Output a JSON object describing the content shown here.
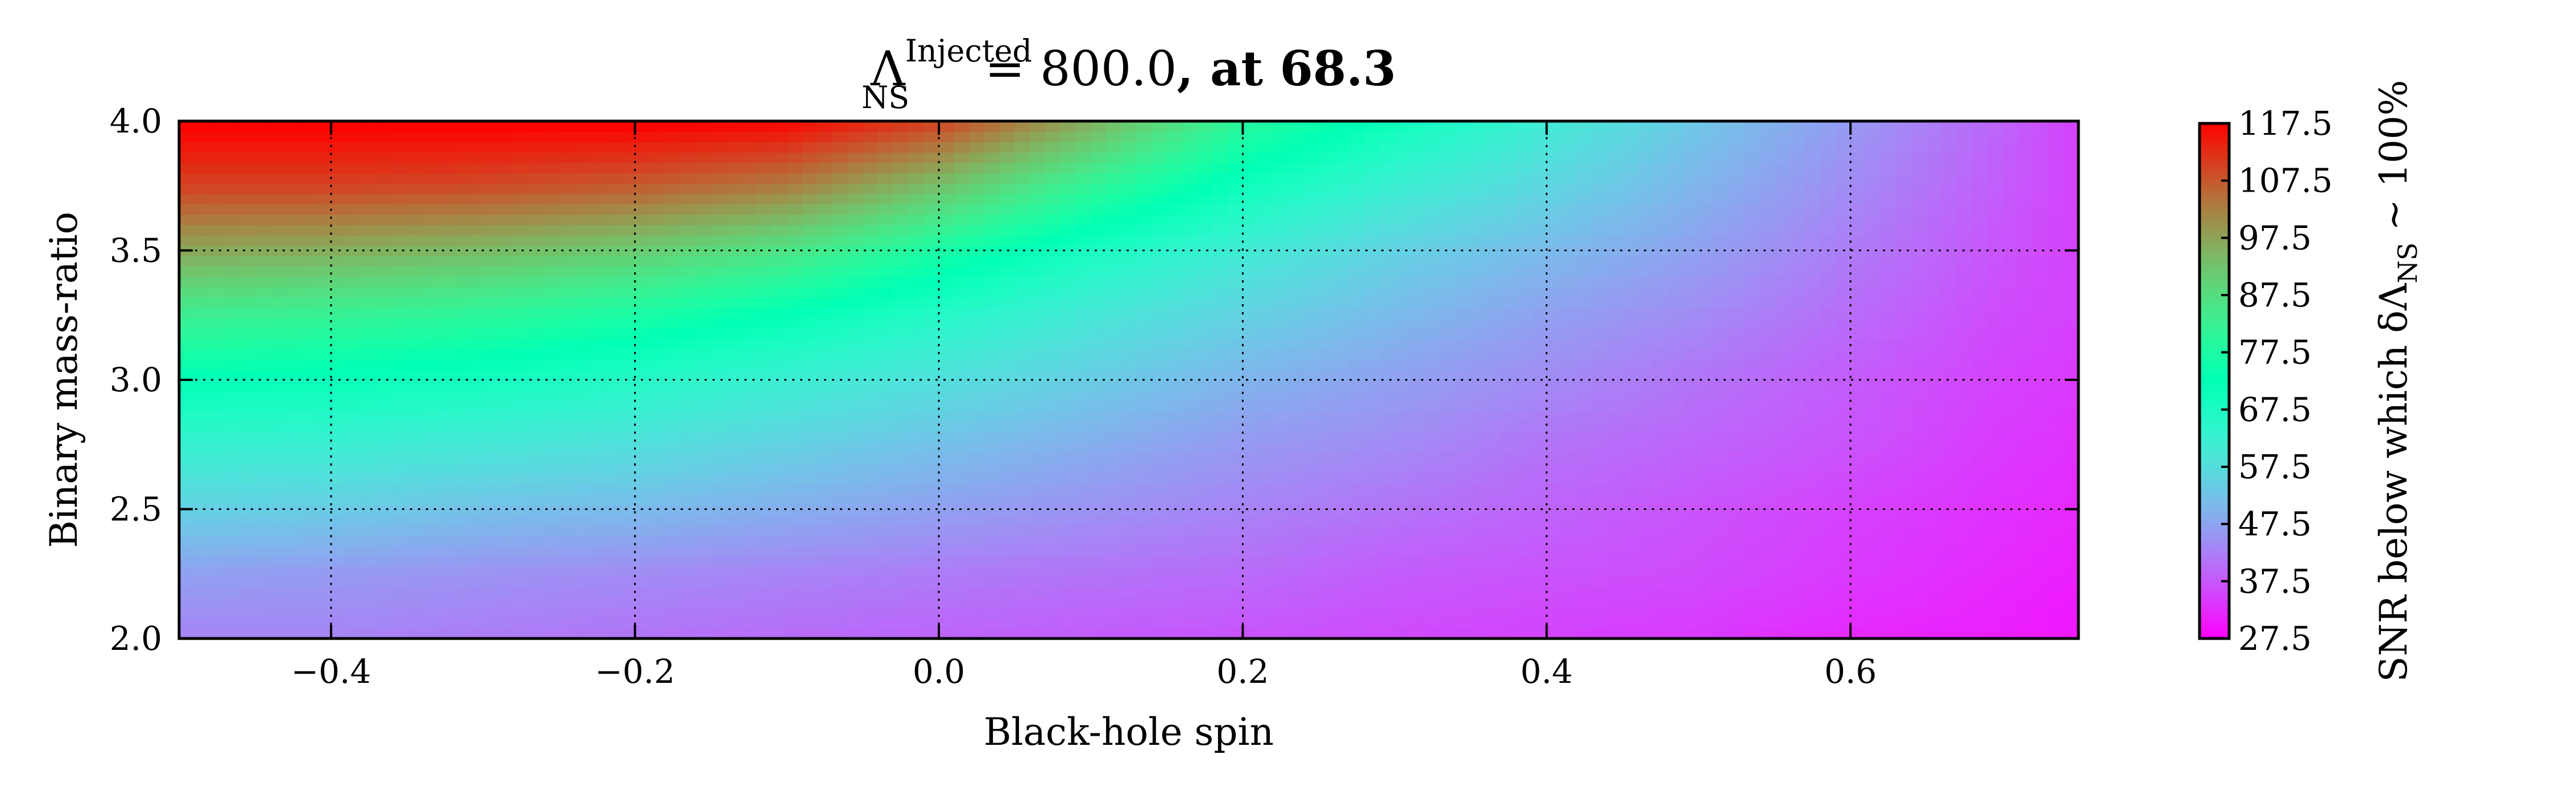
{
  "chart_data": {
    "type": "heatmap",
    "title": {
      "prefix": "Λ",
      "superscript": "Injected",
      "subscript": "NS",
      "value_part": " = 800.0",
      "bold_part": ", at 68.3"
    },
    "xlabel": "Black-hole spin",
    "ylabel": "Binary mass-ratio",
    "xlim": [
      -0.5,
      0.75
    ],
    "ylim": [
      2.0,
      4.0
    ],
    "x_ticks": [
      -0.4,
      -0.2,
      0.0,
      0.2,
      0.4,
      0.6
    ],
    "x_tick_labels": [
      "−0.4",
      "−0.2",
      "0.0",
      "0.2",
      "0.4",
      "0.6"
    ],
    "y_ticks": [
      2.0,
      2.5,
      3.0,
      3.5,
      4.0
    ],
    "y_tick_labels": [
      "2.0",
      "2.5",
      "3.0",
      "3.5",
      "4.0"
    ],
    "grid": true,
    "colormap": "rainbow",
    "colorbar": {
      "label_prefix": "SNR below which δΛ",
      "label_subscript": "NS",
      "label_suffix": " ∼ 100%",
      "range": [
        27.5,
        117.5
      ],
      "ticks": [
        27.5,
        37.5,
        47.5,
        57.5,
        67.5,
        77.5,
        87.5,
        97.5,
        107.5,
        117.5
      ],
      "tick_labels": [
        "27.5",
        "37.5",
        "47.5",
        "57.5",
        "67.5",
        "77.5",
        "87.5",
        "97.5",
        "107.5",
        "117.5"
      ]
    },
    "grid_x": [
      -0.5,
      -0.4,
      -0.3,
      -0.2,
      -0.1,
      0.0,
      0.1,
      0.2,
      0.3,
      0.4,
      0.5,
      0.6,
      0.7,
      0.75
    ],
    "grid_y": [
      2.0,
      2.25,
      2.5,
      2.75,
      3.0,
      3.25,
      3.5,
      3.75,
      4.0
    ],
    "z": [
      [
        43,
        43,
        42,
        41,
        40,
        39,
        38,
        37,
        36,
        35,
        34,
        32,
        31,
        30
      ],
      [
        47,
        46,
        45,
        44,
        43,
        42,
        41,
        40,
        38,
        37,
        36,
        34,
        32,
        31
      ],
      [
        55,
        54,
        52,
        51,
        49,
        47,
        45,
        43,
        41,
        39,
        37,
        35,
        33,
        32
      ],
      [
        63,
        62,
        60,
        58,
        55,
        52,
        49,
        46,
        44,
        41,
        39,
        37,
        34,
        33
      ],
      [
        72,
        71,
        69,
        66,
        62,
        58,
        54,
        50,
        47,
        44,
        41,
        38,
        35,
        34
      ],
      [
        83,
        82,
        80,
        77,
        72,
        66,
        60,
        55,
        51,
        47,
        44,
        40,
        36,
        35
      ],
      [
        97,
        96,
        94,
        91,
        86,
        77,
        68,
        61,
        55,
        51,
        47,
        42,
        37,
        35
      ],
      [
        110,
        110,
        109,
        107,
        103,
        93,
        81,
        70,
        62,
        56,
        50,
        44,
        38,
        35
      ],
      [
        118,
        118,
        118,
        118,
        117,
        110,
        96,
        80,
        70,
        61,
        53,
        46,
        39,
        35
      ]
    ]
  }
}
